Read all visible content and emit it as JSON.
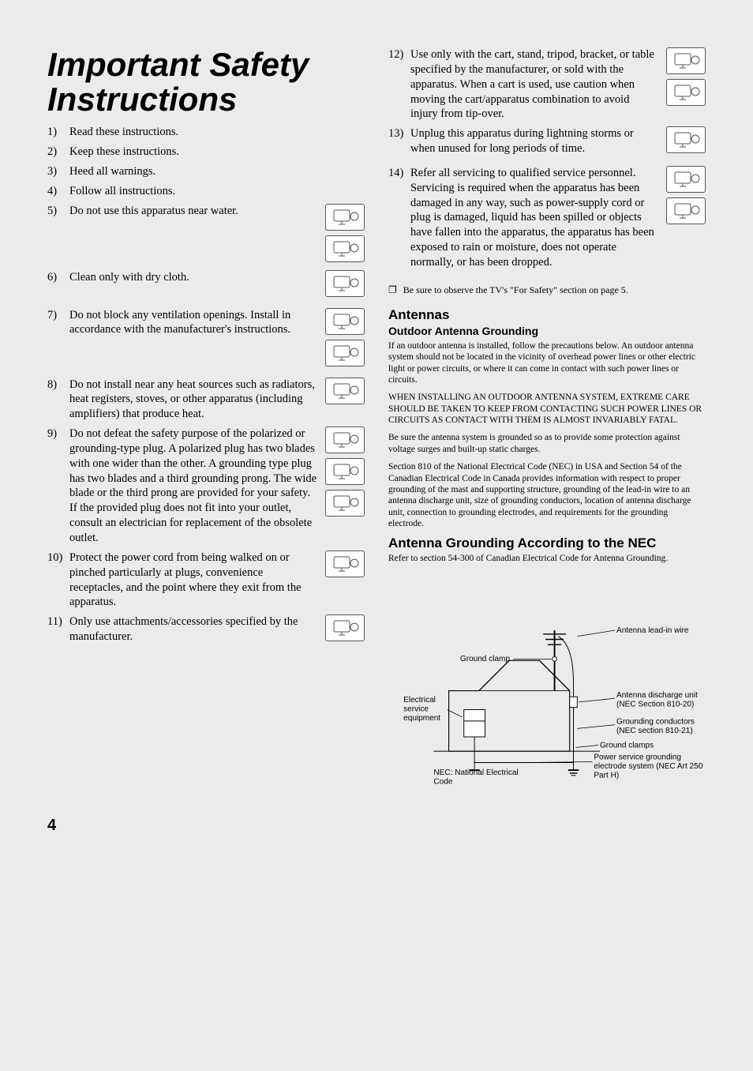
{
  "title": "Important Safety Instructions",
  "left_items": [
    {
      "n": 1,
      "text": "Read these instructions.",
      "icons": 0
    },
    {
      "n": 2,
      "text": "Keep these instructions.",
      "icons": 0
    },
    {
      "n": 3,
      "text": "Heed all warnings.",
      "icons": 0
    },
    {
      "n": 4,
      "text": "Follow all instructions.",
      "icons": 0
    },
    {
      "n": 5,
      "text": "Do not use this apparatus near water.",
      "icons": 2,
      "spacer_after": 10
    },
    {
      "n": 6,
      "text": "Clean only with dry cloth.",
      "icons": 1,
      "spacer_after": 14
    },
    {
      "n": 7,
      "text": "Do not block any ventilation openings. Install in accordance with the manufacturer's instructions.",
      "icons": 2,
      "spacer_after": 14
    },
    {
      "n": 8,
      "text": "Do not install near any heat sources such as radiators, heat registers, stoves, or other apparatus (including amplifiers) that produce heat.",
      "icons": 1
    },
    {
      "n": 9,
      "text": "Do not defeat the safety purpose of the polarized or grounding-type plug. A polarized plug has two blades with one wider than the other. A grounding type plug has two blades and a third grounding prong. The wide blade or the third prong are provided for your safety. If the provided plug does not fit into your outlet, consult an electrician for replacement of the obsolete outlet.",
      "icons": 3
    },
    {
      "n": 10,
      "text": "Protect the power cord from being walked on or pinched particularly at plugs, convenience receptacles, and the point where they exit from the apparatus.",
      "icons": 1
    },
    {
      "n": 11,
      "text": "Only use attachments/accessories specified by the manufacturer.",
      "icons": 1
    }
  ],
  "right_items": [
    {
      "n": 12,
      "text": "Use only with the cart, stand, tripod, bracket, or table specified by the manufacturer, or sold with the apparatus. When a cart is used, use caution when moving the cart/apparatus combination to avoid injury from tip-over.",
      "icons": 2
    },
    {
      "n": 13,
      "text": "Unplug this apparatus during lightning storms or when unused for long periods of time.",
      "icons": 1,
      "spacer_after": 12
    },
    {
      "n": 14,
      "text": "Refer all servicing to qualified service personnel. Servicing is required when the apparatus has been damaged in any way, such as power-supply cord or plug is damaged, liquid has been spilled or objects have fallen into the apparatus, the apparatus has been exposed to rain or moisture, does not operate normally, or has been dropped.",
      "icons": 2
    }
  ],
  "note": "Be sure to observe the TV's \"For Safety\" section on page 5.",
  "antennas_heading": "Antennas",
  "outdoor_heading": "Outdoor Antenna Grounding",
  "outdoor_p1": "If an outdoor antenna is installed, follow the precautions below. An outdoor antenna system should not be located in the vicinity of overhead power lines or other electric light or power circuits, or where it can come in contact with such power lines or circuits.",
  "outdoor_p2": "WHEN INSTALLING AN OUTDOOR ANTENNA SYSTEM, EXTREME CARE SHOULD BE TAKEN TO KEEP FROM CONTACTING SUCH POWER LINES OR CIRCUITS AS CONTACT WITH THEM IS ALMOST INVARIABLY FATAL.",
  "outdoor_p3": "Be sure the antenna system is grounded so as to provide some protection against voltage surges and built-up static charges.",
  "outdoor_p4": "Section 810 of the National Electrical Code (NEC) in USA and Section 54 of the Canadian Electrical Code in Canada provides information with respect to proper grounding of the mast and supporting structure, grounding of the lead-in wire to an antenna discharge unit, size of grounding conductors, location of antenna discharge unit, connection to grounding electrodes, and requirements for the grounding electrode.",
  "nec_heading": "Antenna Grounding According to the NEC",
  "nec_p1": "Refer to section 54-300 of Canadian Electrical Code for Antenna Grounding.",
  "diagram": {
    "labels": {
      "antenna_leadin": "Antenna lead-in wire",
      "ground_clamp": "Ground clamp",
      "electrical_service": "Electrical service equipment",
      "antenna_discharge": "Antenna discharge unit (NEC Section 810-20)",
      "grounding_conductors": "Grounding conductors (NEC section 810-21)",
      "ground_clamps": "Ground clamps",
      "power_service": "Power service grounding electrode system (NEC Art 250 Part H)",
      "nec_def": "NEC: National Electrical Code"
    },
    "colors": {
      "stroke": "#000000",
      "bg": "#ebebeb"
    }
  },
  "page_number": "4"
}
